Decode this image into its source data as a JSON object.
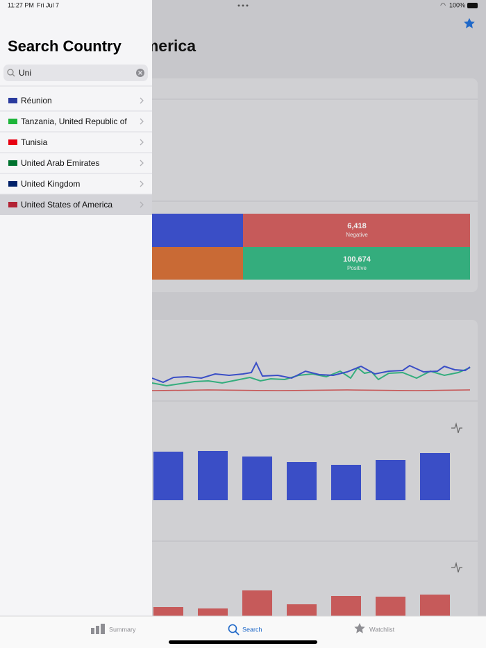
{
  "status_bar": {
    "time": "11:27 PM",
    "date": "Fri Jul 7",
    "battery": "100%"
  },
  "sidebar": {
    "title": "Search Country",
    "search_text": "Uni",
    "results": [
      "Réunion",
      "Tanzania, United Republic of",
      "Tunisia",
      "United Arab Emirates",
      "United Kingdom",
      "United States of America"
    ]
  },
  "detail": {
    "title": "United States of America",
    "tiles": [
      {
        "value": "6,418",
        "label": "Negative"
      },
      {
        "value": "100,674",
        "label": "Positive"
      }
    ]
  },
  "tab_bar": {
    "tabs": [
      "Summary",
      "Search",
      "Watchlist"
    ]
  }
}
